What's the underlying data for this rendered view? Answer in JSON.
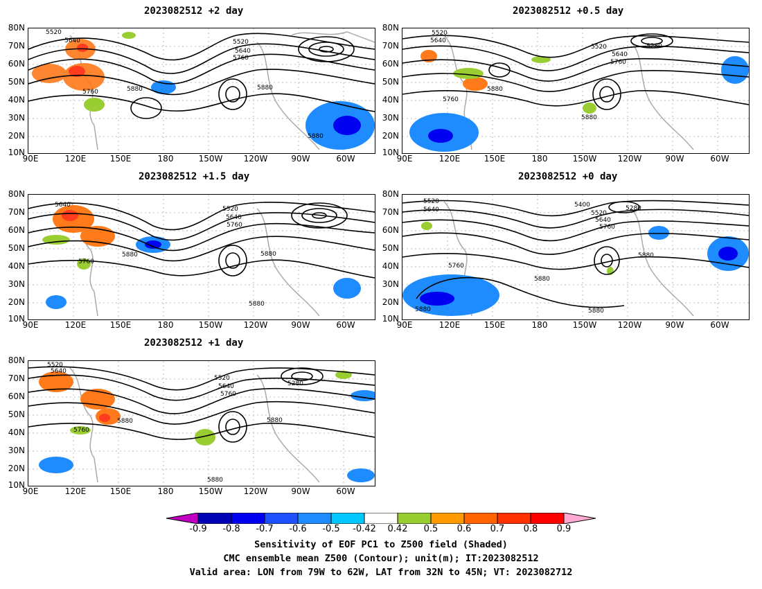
{
  "panels": [
    {
      "id": "p2",
      "title": "2023082512 +2 day"
    },
    {
      "id": "p05",
      "title": "2023082512 +0.5 day"
    },
    {
      "id": "p15",
      "title": "2023082512 +1.5 day"
    },
    {
      "id": "p0",
      "title": "2023082512 +0 day"
    },
    {
      "id": "p1",
      "title": "2023082512 +1 day"
    }
  ],
  "axes": {
    "lat_ticks": [
      "80N",
      "70N",
      "60N",
      "50N",
      "40N",
      "30N",
      "20N",
      "10N"
    ],
    "lon_ticks": [
      "90E",
      "120E",
      "150E",
      "180",
      "150W",
      "120W",
      "90W",
      "60W"
    ]
  },
  "contour_labels": {
    "p2": [
      "5520",
      "5640",
      "5760",
      "5880",
      "5520",
      "5640",
      "5760",
      "5880",
      "5880"
    ],
    "p05": [
      "5520",
      "5640",
      "5760",
      "5880",
      "5520",
      "5640",
      "5760",
      "5280",
      "5880"
    ],
    "p15": [
      "5640",
      "5760",
      "5880",
      "5520",
      "5640",
      "5760",
      "5880",
      "5880"
    ],
    "p0": [
      "5520",
      "5640",
      "5760",
      "5880",
      "5400",
      "5280",
      "5520",
      "5640",
      "5760",
      "5880",
      "5880",
      "5880"
    ],
    "p1": [
      "5520",
      "5640",
      "5760",
      "5880",
      "5520",
      "5640",
      "5760",
      "5280",
      "5880",
      "5880"
    ]
  },
  "colorbar": {
    "labels": [
      "-0.9",
      "-0.8",
      "-0.7",
      "-0.6",
      "-0.5",
      "-0.42",
      "0.42",
      "0.5",
      "0.6",
      "0.7",
      "0.8",
      "0.9"
    ],
    "colors": [
      "#c000c0",
      "#0000b4",
      "#0000f0",
      "#1e50ff",
      "#1e8cff",
      "#00c8ff",
      "#ffffff",
      "#9acd32",
      "#ff9a00",
      "#ff6400",
      "#ff3200",
      "#ff0000",
      "#ffaad2"
    ]
  },
  "caption": {
    "line1": "Sensitivity of EOF PC1 to Z500 field (Shaded)",
    "line2": "CMC ensemble mean Z500 (Contour); unit(m); IT:2023082512",
    "line3": "Valid area: LON from 79W to 62W, LAT from 32N to 45N; VT: 2023082712"
  }
}
